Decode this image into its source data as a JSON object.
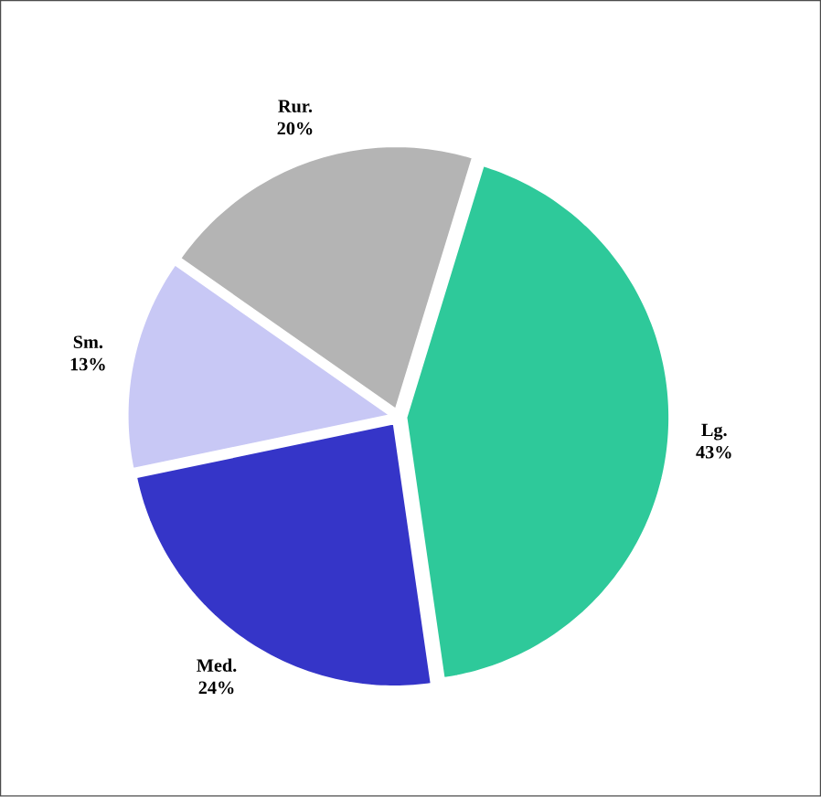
{
  "chart_data": {
    "type": "pie",
    "categories": [
      "Lg.",
      "Med.",
      "Sm.",
      "Rur."
    ],
    "values": [
      43,
      24,
      13,
      20
    ],
    "colors": [
      "#2ec99a",
      "#3535c8",
      "#c8c8f5",
      "#b4b4b4"
    ],
    "value_labels": [
      "43%",
      "24%",
      "13%",
      "20%"
    ]
  }
}
